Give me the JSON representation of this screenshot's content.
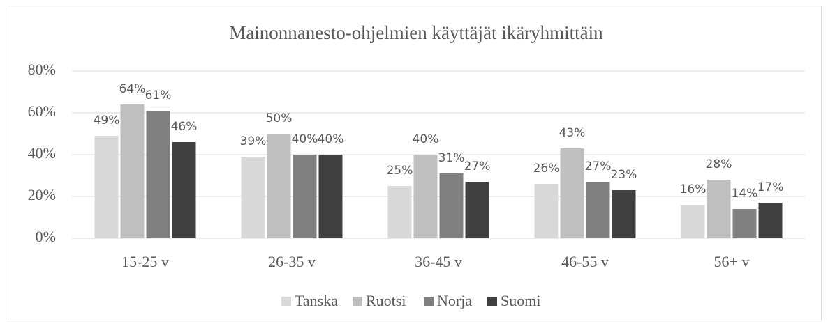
{
  "chart_data": {
    "type": "bar",
    "title": "Mainonnanesto-ohjelmien käyttäjät ikäryhmittäin",
    "categories": [
      "15-25 v",
      "26-35 v",
      "36-45 v",
      "46-55 v",
      "56+ v"
    ],
    "series": [
      {
        "name": "Tanska",
        "color": "#d9d9d9",
        "values": [
          49,
          39,
          25,
          26,
          16
        ],
        "value_labels": [
          "49%",
          "39%",
          "25%",
          "26%",
          "16%"
        ]
      },
      {
        "name": "Ruotsi",
        "color": "#bfbfbf",
        "values": [
          64,
          50,
          40,
          43,
          28
        ],
        "value_labels": [
          "64%",
          "50%",
          "40%",
          "43%",
          "28%"
        ]
      },
      {
        "name": "Norja",
        "color": "#808080",
        "values": [
          61,
          40,
          31,
          27,
          14
        ],
        "value_labels": [
          "61%",
          "40%",
          "31%",
          "27%",
          "14%"
        ]
      },
      {
        "name": "Suomi",
        "color": "#404040",
        "values": [
          46,
          40,
          27,
          23,
          17
        ],
        "value_labels": [
          "46%",
          "40%",
          "27%",
          "23%",
          "17%"
        ]
      }
    ],
    "ylim": [
      0,
      80
    ],
    "yticks": [
      {
        "value": 0,
        "label": "0%"
      },
      {
        "value": 20,
        "label": "20%"
      },
      {
        "value": 40,
        "label": "40%"
      },
      {
        "value": 60,
        "label": "60%"
      },
      {
        "value": 80,
        "label": "80%"
      }
    ],
    "grid": true,
    "legend": "bottom"
  }
}
